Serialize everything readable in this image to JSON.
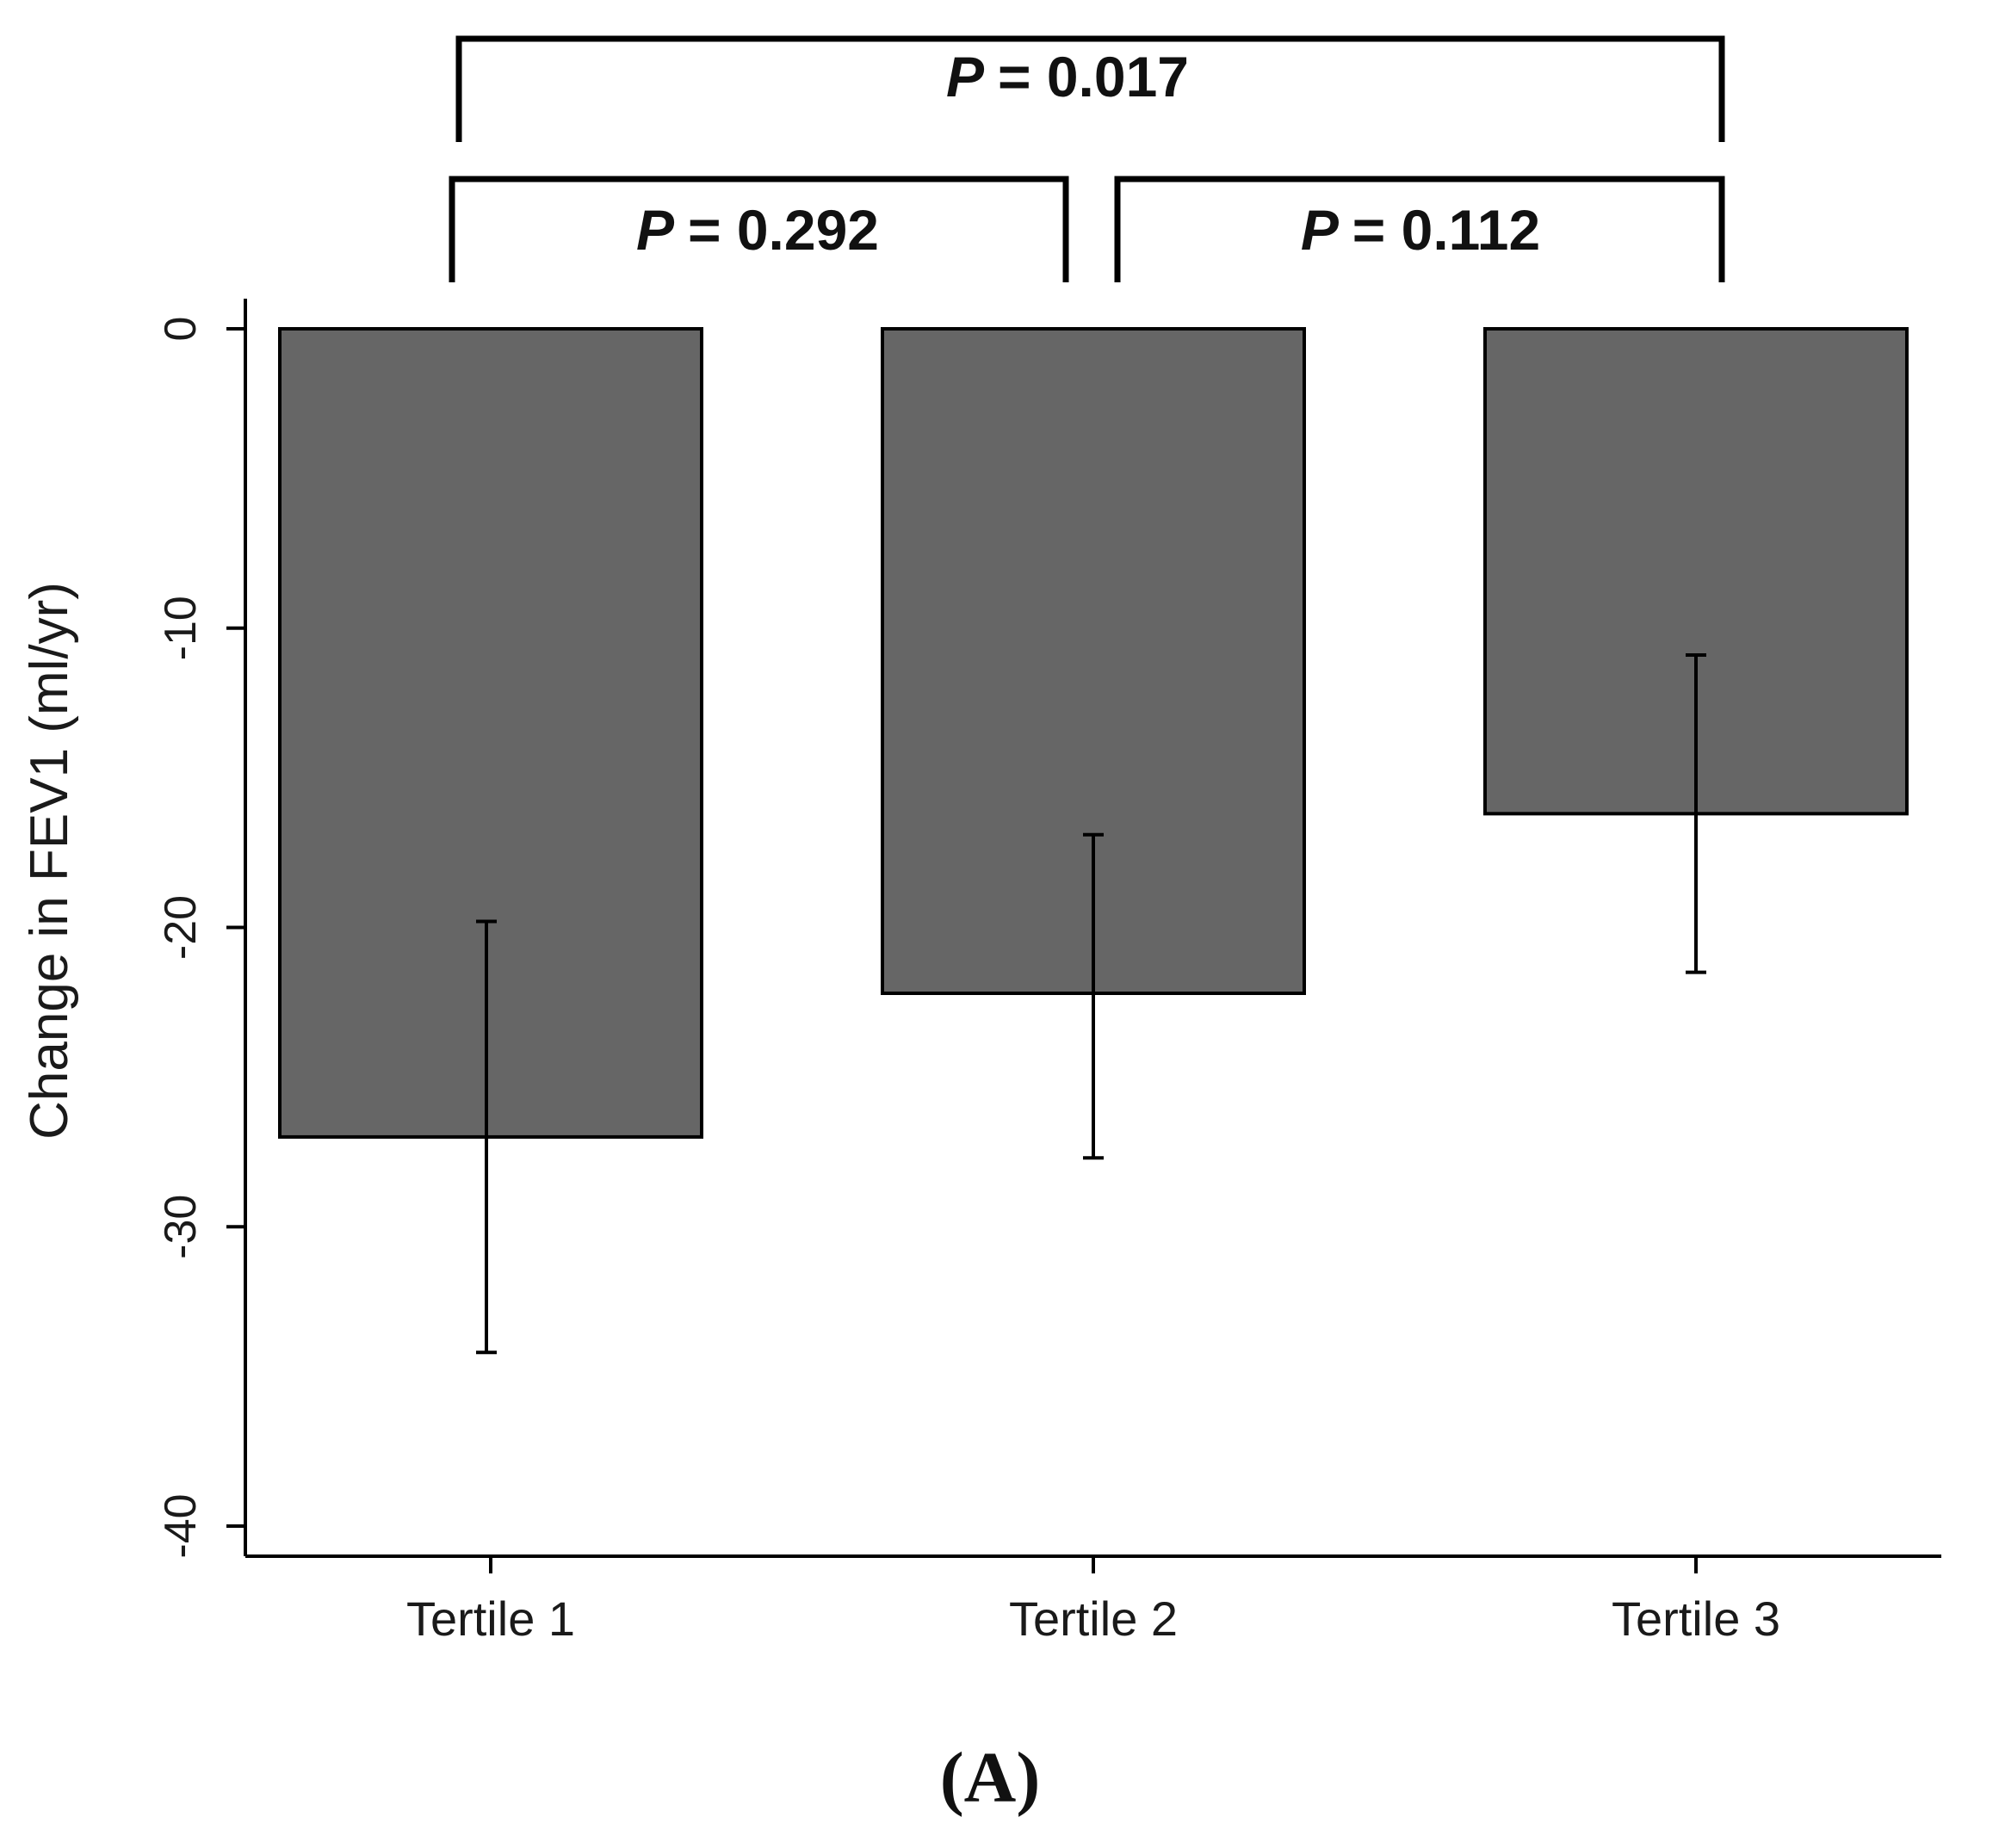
{
  "chart_data": {
    "type": "bar",
    "categories": [
      "Tertile 1",
      "Tertile 2",
      "Tertile 3"
    ],
    "values": [
      -27.0,
      -22.2,
      -16.2
    ],
    "error_bars": [
      {
        "low": -34.2,
        "high": -19.8
      },
      {
        "low": -27.7,
        "high": -16.9
      },
      {
        "low": -21.5,
        "high": -10.9
      }
    ],
    "ylabel": "Change in FEV1 (ml/yr)",
    "ylim": [
      -40,
      0
    ],
    "yticks": [
      "0",
      "-10",
      "-20",
      "-30",
      "-40"
    ],
    "ytick_values": [
      0,
      -10,
      -20,
      -30,
      -40
    ],
    "bar_color": "#666666",
    "comparisons": [
      {
        "from": 0,
        "to": 2,
        "label_prefix": "P",
        "label_value": "= 0.017"
      },
      {
        "from": 0,
        "to": 1,
        "label_prefix": "P",
        "label_value": "= 0.292"
      },
      {
        "from": 1,
        "to": 2,
        "label_prefix": "P",
        "label_value": "= 0.112"
      }
    ],
    "panel_label": "(A)"
  }
}
